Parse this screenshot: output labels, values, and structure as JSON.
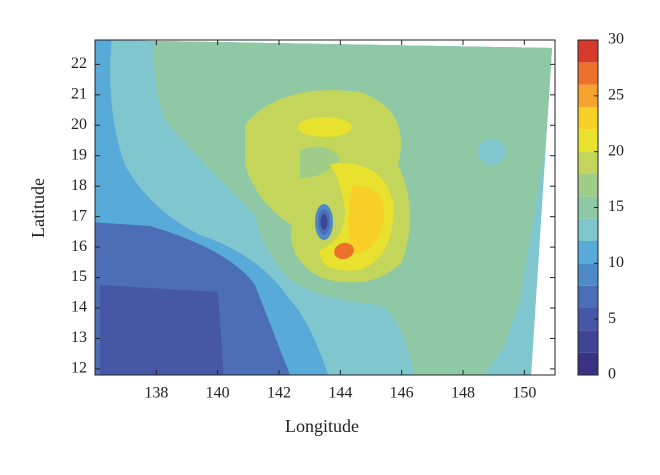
{
  "chart_data": {
    "type": "contour",
    "xlabel": "Longitude",
    "ylabel": "Latitude",
    "xlim": [
      136,
      151
    ],
    "xticks": [
      138,
      140,
      142,
      144,
      146,
      148,
      150
    ],
    "ylim": [
      11.8,
      22.8
    ],
    "yticks": [
      12,
      13,
      14,
      15,
      16,
      17,
      18,
      19,
      20,
      21,
      22
    ],
    "colorbar": {
      "levels": [
        0,
        2,
        4,
        6,
        8,
        10,
        12,
        14,
        16,
        18,
        20,
        22,
        24,
        26,
        28,
        30
      ],
      "colors": [
        "#3a3383",
        "#3f4394",
        "#4658a5",
        "#4b6eb6",
        "#4f8ac8",
        "#58aad9",
        "#7fc6cf",
        "#8ec8a4",
        "#9fcc86",
        "#c3d55a",
        "#e8e22f",
        "#f8cf26",
        "#f4a42c",
        "#ec712b",
        "#d63a2a"
      ],
      "ticks": [
        0,
        5,
        10,
        15,
        20,
        25,
        30
      ]
    }
  }
}
